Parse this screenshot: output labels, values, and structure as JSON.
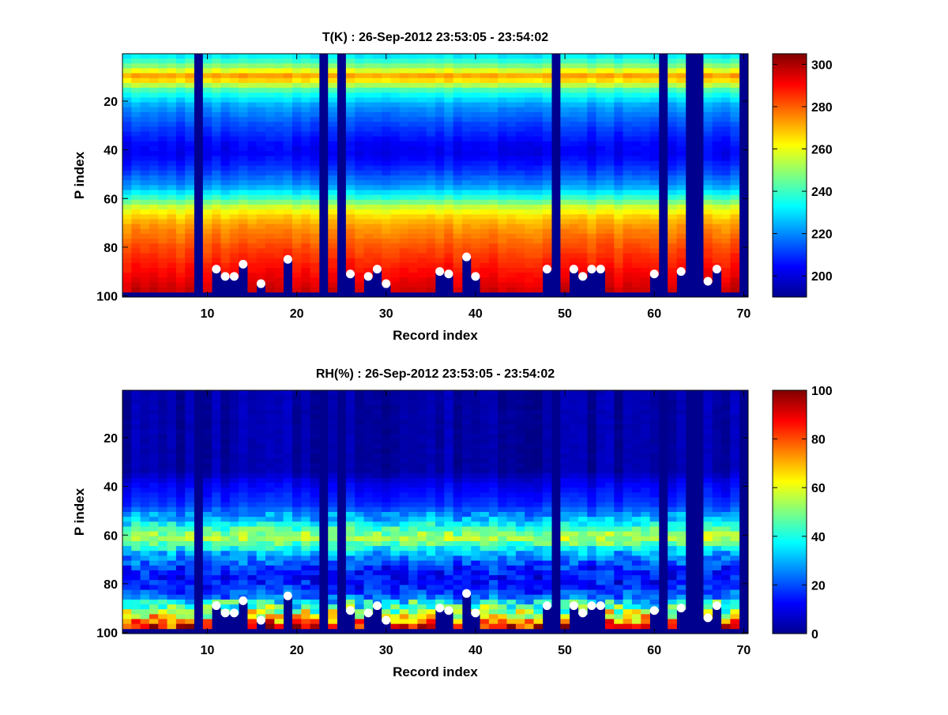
{
  "chart_data": [
    {
      "type": "heatmap",
      "title": "T(K) : 26-Sep-2012 23:53:05 - 23:54:02",
      "xlabel": "Record index",
      "ylabel": "P index",
      "xlim": [
        1,
        70
      ],
      "ylim": [
        1,
        100
      ],
      "y_reversed": true,
      "x_ticks": [
        "10",
        "20",
        "30",
        "40",
        "50",
        "60",
        "70"
      ],
      "y_ticks": [
        "20",
        "40",
        "60",
        "80",
        "100"
      ],
      "colorbar": {
        "min": 190,
        "max": 305,
        "ticks": [
          "200",
          "220",
          "240",
          "260",
          "280",
          "300"
        ]
      },
      "colormap": "jet",
      "profile_by_p_index": [
        [
          1,
          230
        ],
        [
          5,
          245
        ],
        [
          8,
          262
        ],
        [
          10,
          275
        ],
        [
          12,
          262
        ],
        [
          16,
          238
        ],
        [
          22,
          222
        ],
        [
          30,
          212
        ],
        [
          38,
          204
        ],
        [
          42,
          203
        ],
        [
          48,
          210
        ],
        [
          55,
          222
        ],
        [
          60,
          240
        ],
        [
          64,
          258
        ],
        [
          68,
          268
        ],
        [
          72,
          274
        ],
        [
          80,
          282
        ],
        [
          90,
          290
        ],
        [
          100,
          298
        ]
      ],
      "masked_records": [
        9,
        23,
        25,
        49,
        61,
        64,
        65,
        70
      ],
      "surface_markers": [
        {
          "record": 11,
          "p_index": 89
        },
        {
          "record": 12,
          "p_index": 92
        },
        {
          "record": 13,
          "p_index": 92
        },
        {
          "record": 14,
          "p_index": 87
        },
        {
          "record": 16,
          "p_index": 95
        },
        {
          "record": 19,
          "p_index": 85
        },
        {
          "record": 26,
          "p_index": 91
        },
        {
          "record": 28,
          "p_index": 92
        },
        {
          "record": 29,
          "p_index": 89
        },
        {
          "record": 30,
          "p_index": 95
        },
        {
          "record": 36,
          "p_index": 90
        },
        {
          "record": 37,
          "p_index": 91
        },
        {
          "record": 39,
          "p_index": 84
        },
        {
          "record": 40,
          "p_index": 92
        },
        {
          "record": 48,
          "p_index": 89
        },
        {
          "record": 51,
          "p_index": 89
        },
        {
          "record": 52,
          "p_index": 92
        },
        {
          "record": 53,
          "p_index": 89
        },
        {
          "record": 54,
          "p_index": 89
        },
        {
          "record": 60,
          "p_index": 91
        },
        {
          "record": 63,
          "p_index": 90
        },
        {
          "record": 66,
          "p_index": 94
        },
        {
          "record": 67,
          "p_index": 89
        }
      ]
    },
    {
      "type": "heatmap",
      "title": "RH(%) : 26-Sep-2012 23:53:05 - 23:54:02",
      "xlabel": "Record index",
      "ylabel": "P index",
      "xlim": [
        1,
        70
      ],
      "ylim": [
        1,
        100
      ],
      "y_reversed": true,
      "x_ticks": [
        "10",
        "20",
        "30",
        "40",
        "50",
        "60",
        "70"
      ],
      "y_ticks": [
        "20",
        "40",
        "60",
        "80",
        "100"
      ],
      "colorbar": {
        "min": 0,
        "max": 100,
        "ticks": [
          "0",
          "20",
          "40",
          "60",
          "80",
          "100"
        ]
      },
      "colormap": "jet",
      "profile_by_p_index": [
        [
          1,
          4
        ],
        [
          34,
          4
        ],
        [
          38,
          10
        ],
        [
          48,
          18
        ],
        [
          54,
          32
        ],
        [
          58,
          48
        ],
        [
          61,
          55
        ],
        [
          64,
          45
        ],
        [
          68,
          28
        ],
        [
          74,
          16
        ],
        [
          80,
          14
        ],
        [
          85,
          22
        ],
        [
          90,
          40
        ],
        [
          94,
          60
        ],
        [
          97,
          80
        ],
        [
          100,
          92
        ]
      ],
      "masked_records": [
        9,
        23,
        25,
        49,
        61,
        64,
        65,
        70
      ],
      "surface_markers": [
        {
          "record": 11,
          "p_index": 89
        },
        {
          "record": 12,
          "p_index": 92
        },
        {
          "record": 13,
          "p_index": 92
        },
        {
          "record": 14,
          "p_index": 87
        },
        {
          "record": 16,
          "p_index": 95
        },
        {
          "record": 19,
          "p_index": 85
        },
        {
          "record": 26,
          "p_index": 91
        },
        {
          "record": 28,
          "p_index": 92
        },
        {
          "record": 29,
          "p_index": 89
        },
        {
          "record": 30,
          "p_index": 95
        },
        {
          "record": 36,
          "p_index": 90
        },
        {
          "record": 37,
          "p_index": 91
        },
        {
          "record": 39,
          "p_index": 84
        },
        {
          "record": 40,
          "p_index": 92
        },
        {
          "record": 48,
          "p_index": 89
        },
        {
          "record": 51,
          "p_index": 89
        },
        {
          "record": 52,
          "p_index": 92
        },
        {
          "record": 53,
          "p_index": 89
        },
        {
          "record": 54,
          "p_index": 89
        },
        {
          "record": 60,
          "p_index": 91
        },
        {
          "record": 63,
          "p_index": 90
        },
        {
          "record": 66,
          "p_index": 94
        },
        {
          "record": 67,
          "p_index": 89
        }
      ]
    }
  ]
}
